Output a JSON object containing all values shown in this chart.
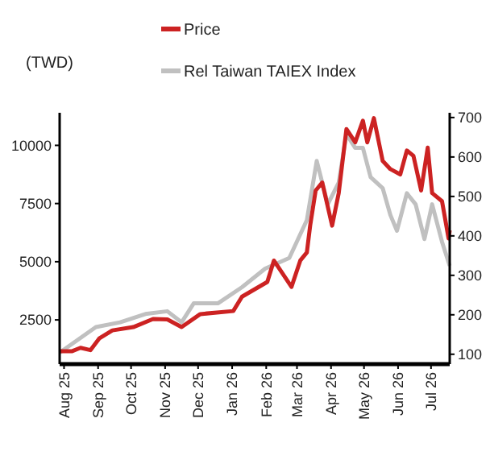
{
  "chart_data": {
    "type": "line",
    "ylabel": "(TWD)",
    "legend": "top",
    "grid": false,
    "xlim": [
      "2025-07-28",
      "2026-07-18"
    ],
    "xticks": [
      {
        "value": "2025-08-01",
        "label": "Aug 25"
      },
      {
        "value": "2025-09-01",
        "label": "Sep 25"
      },
      {
        "value": "2025-10-01",
        "label": "Oct 25"
      },
      {
        "value": "2025-11-01",
        "label": "Nov 25"
      },
      {
        "value": "2025-12-01",
        "label": "Dec 25"
      },
      {
        "value": "2026-01-01",
        "label": "Jan 26"
      },
      {
        "value": "2026-02-01",
        "label": "Feb 26"
      },
      {
        "value": "2026-03-01",
        "label": "Mar 26"
      },
      {
        "value": "2026-04-01",
        "label": "Apr 26"
      },
      {
        "value": "2026-05-01",
        "label": "May 26"
      },
      {
        "value": "2026-06-01",
        "label": "Jun 26"
      },
      {
        "value": "2026-07-01",
        "label": "Jul 26"
      }
    ],
    "ylim": [
      600,
      11400
    ],
    "yticks": [
      2500,
      5000,
      7500,
      10000
    ],
    "y2lim": [
      75,
      712
    ],
    "y2ticks": [
      100,
      200,
      300,
      400,
      500,
      600,
      700
    ],
    "series": [
      {
        "name": "Rel Taiwan TAIEX Index",
        "color": "#c0c0c0",
        "axis": "y2",
        "x": [
          "2025-07-28",
          "2025-08-30",
          "2025-09-21",
          "2025-10-14",
          "2025-11-03",
          "2025-11-16",
          "2025-11-27",
          "2025-12-19",
          "2026-01-10",
          "2026-01-31",
          "2026-02-22",
          "2026-03-10",
          "2026-03-19",
          "2026-03-29",
          "2026-04-08",
          "2026-04-15",
          "2026-04-23",
          "2026-04-30",
          "2026-05-07",
          "2026-05-18",
          "2026-05-25",
          "2026-05-31",
          "2026-06-09",
          "2026-06-17",
          "2026-06-25",
          "2026-07-02",
          "2026-07-11",
          "2026-07-18"
        ],
        "values": [
          104,
          169,
          181,
          202,
          209,
          181,
          229,
          229,
          270,
          317,
          344,
          440,
          590,
          480,
          535,
          658,
          623,
          623,
          549,
          521,
          453,
          413,
          508,
          480,
          392,
          480,
          385,
          324
        ]
      },
      {
        "name": "Price",
        "color": "#cc2222",
        "x": [
          "2025-07-28",
          "2025-08-08",
          "2025-08-16",
          "2025-08-25",
          "2025-09-02",
          "2025-09-14",
          "2025-10-03",
          "2025-10-21",
          "2025-11-03",
          "2025-11-16",
          "2025-12-03",
          "2026-01-02",
          "2026-01-10",
          "2026-02-02",
          "2026-02-08",
          "2026-02-24",
          "2026-03-04",
          "2026-03-10",
          "2026-03-13",
          "2026-03-18",
          "2026-03-24",
          "2026-04-02",
          "2026-04-08",
          "2026-04-15",
          "2026-04-23",
          "2026-04-30",
          "2026-05-04",
          "2026-05-10",
          "2026-05-18",
          "2026-05-25",
          "2026-06-03",
          "2026-06-09",
          "2026-06-15",
          "2026-06-22",
          "2026-06-28",
          "2026-07-02",
          "2026-07-11",
          "2026-07-17",
          "2026-07-18"
        ],
        "values": [
          1150,
          1150,
          1300,
          1200,
          1700,
          2050,
          2190,
          2540,
          2520,
          2190,
          2750,
          2880,
          3500,
          4130,
          5050,
          3920,
          5050,
          5400,
          6550,
          8060,
          8400,
          6550,
          7950,
          10700,
          10130,
          11060,
          10130,
          11170,
          9330,
          8980,
          8750,
          9780,
          9550,
          8060,
          9900,
          7950,
          7600,
          6000,
          6350
        ]
      }
    ]
  }
}
